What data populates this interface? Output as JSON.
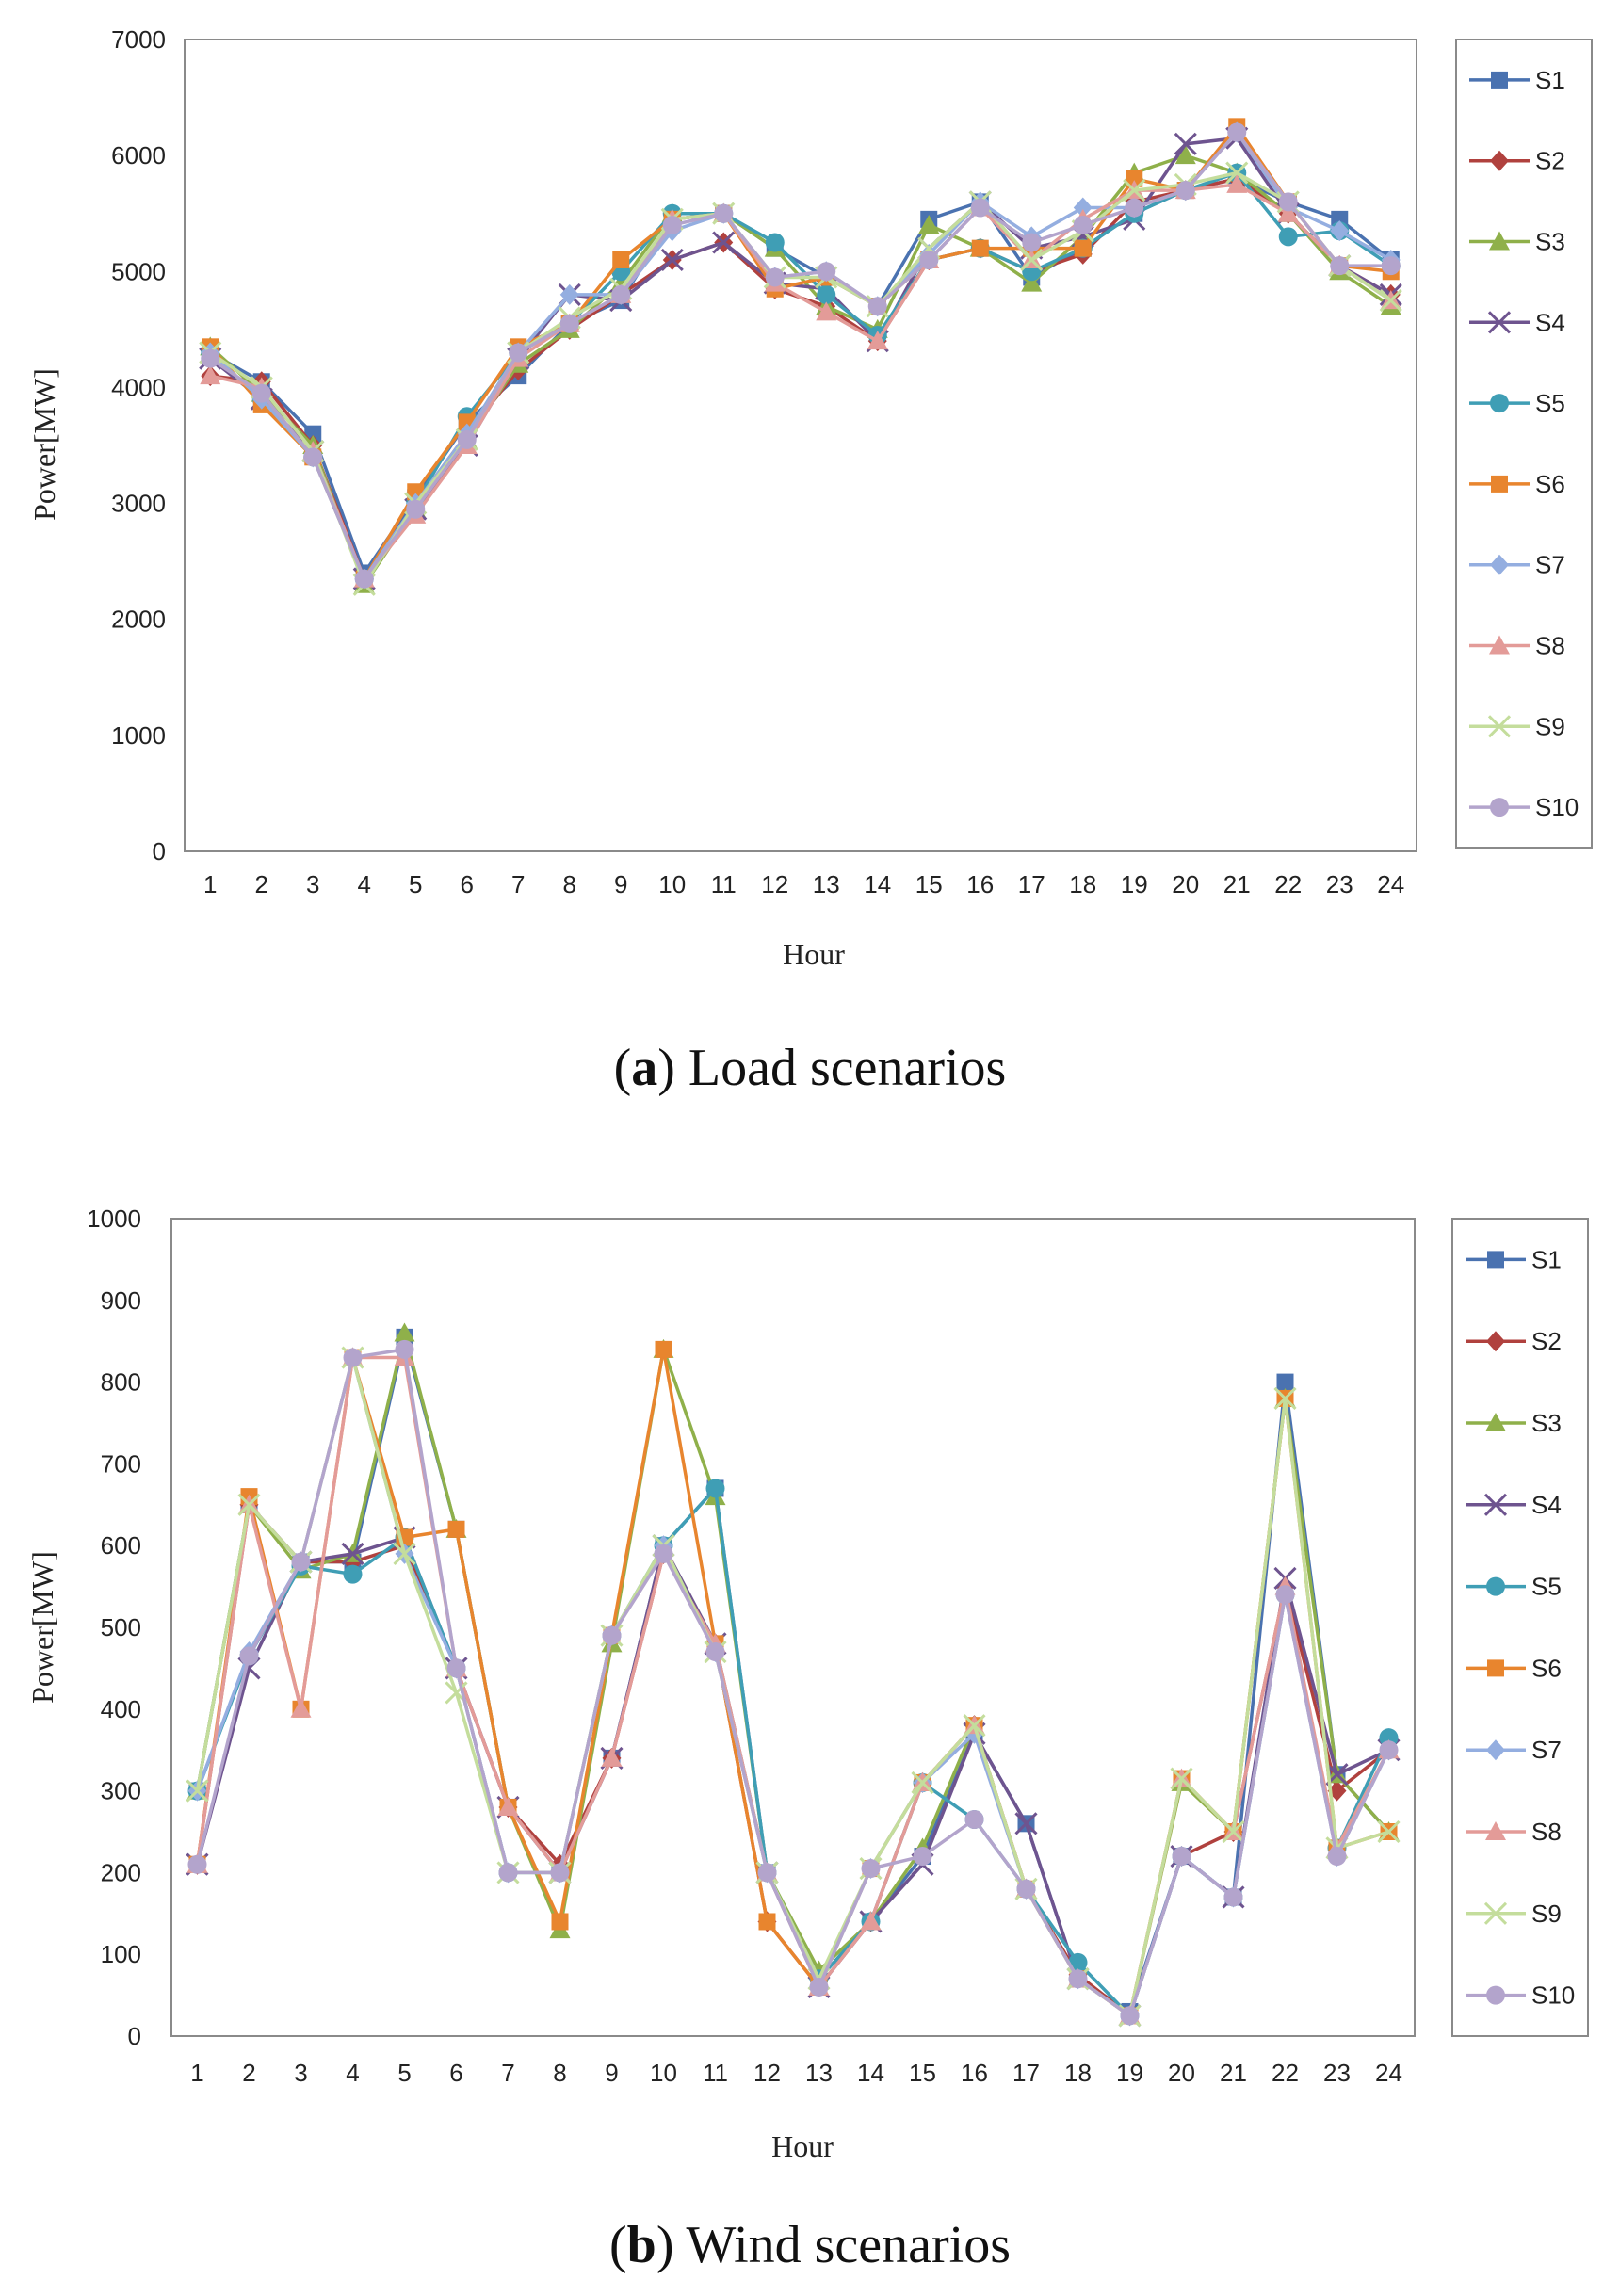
{
  "colors": {
    "S1": "#4a72b0",
    "S2": "#b0413e",
    "S3": "#8fb04a",
    "S4": "#6e548f",
    "S5": "#3f9eb5",
    "S6": "#e8852e",
    "S7": "#94aee0",
    "S8": "#e39b98",
    "S9": "#c4dd9c",
    "S10": "#b3a4cc"
  },
  "chart_data": [
    {
      "id": "load",
      "type": "line",
      "caption_letter": "a",
      "caption_text": ") Load scenarios",
      "xlabel": "Hour",
      "ylabel": "Power[MW]",
      "ylim": [
        0,
        7000
      ],
      "yticks": [
        "0",
        "1000",
        "2000",
        "3000",
        "4000",
        "5000",
        "6000",
        "7000"
      ],
      "xticks": [
        "1",
        "2",
        "3",
        "4",
        "5",
        "6",
        "7",
        "8",
        "9",
        "10",
        "11",
        "12",
        "13",
        "14",
        "15",
        "16",
        "17",
        "18",
        "19",
        "20",
        "21",
        "22",
        "23",
        "24"
      ],
      "legend": "right",
      "series": [
        {
          "name": "S1",
          "marker": "square",
          "values": [
            4300,
            4050,
            3600,
            2400,
            3050,
            3700,
            4100,
            4550,
            4750,
            5450,
            5500,
            5200,
            4950,
            4700,
            5450,
            5600,
            4950,
            5200,
            5500,
            5700,
            5800,
            5600,
            5450,
            5100
          ]
        },
        {
          "name": "S2",
          "marker": "diamond",
          "values": [
            4100,
            4050,
            3500,
            2350,
            3000,
            3600,
            4150,
            4500,
            4800,
            5100,
            5250,
            4850,
            4700,
            4400,
            5100,
            5200,
            5000,
            5150,
            5600,
            5700,
            5800,
            5500,
            5050,
            4800
          ]
        },
        {
          "name": "S3",
          "marker": "triangle",
          "values": [
            4350,
            3950,
            3500,
            2300,
            2950,
            3550,
            4200,
            4500,
            4900,
            5500,
            5500,
            5200,
            4700,
            4500,
            5400,
            5200,
            4900,
            5300,
            5850,
            6000,
            5850,
            5500,
            5000,
            4700
          ]
        },
        {
          "name": "S4",
          "marker": "x",
          "values": [
            4250,
            3900,
            3450,
            2350,
            2950,
            3500,
            4250,
            4800,
            4750,
            5100,
            5250,
            4900,
            4850,
            4400,
            5200,
            5600,
            5200,
            5300,
            5450,
            6100,
            6150,
            5500,
            5050,
            4800
          ]
        },
        {
          "name": "S5",
          "marker": "circle",
          "values": [
            4300,
            3900,
            3400,
            2350,
            3000,
            3750,
            4300,
            4550,
            5000,
            5500,
            5500,
            5250,
            4800,
            4450,
            5100,
            5200,
            5000,
            5200,
            5500,
            5700,
            5850,
            5300,
            5350,
            5050
          ]
        },
        {
          "name": "S6",
          "marker": "square",
          "values": [
            4350,
            3850,
            3400,
            2350,
            3100,
            3700,
            4350,
            4550,
            5100,
            5450,
            5500,
            4850,
            4950,
            4700,
            5100,
            5200,
            5200,
            5200,
            5800,
            5700,
            6250,
            5600,
            5050,
            5000
          ]
        },
        {
          "name": "S7",
          "marker": "diamond",
          "values": [
            4300,
            3900,
            3400,
            2350,
            3000,
            3600,
            4300,
            4800,
            4800,
            5350,
            5500,
            4950,
            5000,
            4700,
            5150,
            5600,
            5300,
            5550,
            5550,
            5700,
            6200,
            5550,
            5350,
            5100
          ]
        },
        {
          "name": "S8",
          "marker": "triangle",
          "values": [
            4100,
            4000,
            3450,
            2350,
            2900,
            3500,
            4250,
            4550,
            4800,
            5450,
            5500,
            4900,
            4650,
            4400,
            5100,
            5550,
            5100,
            5450,
            5700,
            5700,
            5750,
            5500,
            5050,
            4750
          ]
        },
        {
          "name": "S9",
          "marker": "x",
          "values": [
            4300,
            4000,
            3450,
            2300,
            3000,
            3550,
            4300,
            4600,
            4850,
            5450,
            5500,
            4950,
            4950,
            4700,
            5200,
            5600,
            5100,
            5350,
            5700,
            5750,
            5850,
            5600,
            5050,
            4750
          ]
        },
        {
          "name": "S10",
          "marker": "circle",
          "values": [
            4250,
            3950,
            3400,
            2350,
            2950,
            3550,
            4300,
            4550,
            4800,
            5400,
            5500,
            4950,
            5000,
            4700,
            5100,
            5550,
            5250,
            5400,
            5550,
            5700,
            6200,
            5600,
            5050,
            5050
          ]
        }
      ]
    },
    {
      "id": "wind",
      "type": "line",
      "caption_letter": "b",
      "caption_text": ") Wind scenarios",
      "xlabel": "Hour",
      "ylabel": "Power[MW]",
      "ylim": [
        0,
        1000
      ],
      "yticks": [
        "0",
        "100",
        "200",
        "300",
        "400",
        "500",
        "600",
        "700",
        "800",
        "900",
        "1000"
      ],
      "xticks": [
        "1",
        "2",
        "3",
        "4",
        "5",
        "6",
        "7",
        "8",
        "9",
        "10",
        "11",
        "12",
        "13",
        "14",
        "15",
        "16",
        "17",
        "18",
        "19",
        "20",
        "21",
        "22",
        "23",
        "24"
      ],
      "legend": "right",
      "series": [
        {
          "name": "S1",
          "marker": "square",
          "values": [
            300,
            650,
            580,
            580,
            855,
            620,
            280,
            200,
            340,
            600,
            670,
            200,
            70,
            140,
            220,
            370,
            260,
            70,
            30,
            220,
            170,
            800,
            320,
            250
          ]
        },
        {
          "name": "S2",
          "marker": "diamond",
          "values": [
            210,
            650,
            580,
            580,
            600,
            450,
            280,
            210,
            340,
            590,
            480,
            140,
            60,
            140,
            310,
            380,
            180,
            75,
            25,
            220,
            250,
            550,
            300,
            350
          ]
        },
        {
          "name": "S3",
          "marker": "triangle",
          "values": [
            300,
            650,
            570,
            590,
            860,
            620,
            280,
            130,
            480,
            840,
            660,
            200,
            80,
            140,
            230,
            380,
            180,
            70,
            25,
            310,
            250,
            780,
            320,
            250
          ]
        },
        {
          "name": "S4",
          "marker": "x",
          "values": [
            210,
            450,
            580,
            590,
            610,
            450,
            280,
            200,
            340,
            600,
            480,
            200,
            60,
            140,
            210,
            370,
            260,
            70,
            25,
            220,
            170,
            560,
            320,
            350
          ]
        },
        {
          "name": "S5",
          "marker": "circle",
          "values": [
            300,
            465,
            575,
            565,
            610,
            450,
            200,
            200,
            490,
            600,
            670,
            200,
            70,
            140,
            310,
            265,
            180,
            90,
            25,
            220,
            170,
            540,
            230,
            365
          ]
        },
        {
          "name": "S6",
          "marker": "square",
          "values": [
            210,
            660,
            400,
            830,
            610,
            620,
            280,
            140,
            490,
            840,
            480,
            140,
            60,
            205,
            310,
            380,
            180,
            70,
            25,
            315,
            250,
            780,
            230,
            250
          ]
        },
        {
          "name": "S7",
          "marker": "diamond",
          "values": [
            300,
            470,
            580,
            830,
            590,
            450,
            200,
            200,
            490,
            600,
            470,
            200,
            60,
            205,
            310,
            370,
            180,
            70,
            25,
            220,
            170,
            540,
            220,
            350
          ]
        },
        {
          "name": "S8",
          "marker": "triangle",
          "values": [
            210,
            650,
            400,
            830,
            830,
            450,
            280,
            200,
            340,
            590,
            480,
            200,
            60,
            140,
            310,
            380,
            180,
            70,
            25,
            315,
            250,
            550,
            230,
            350
          ]
        },
        {
          "name": "S9",
          "marker": "x",
          "values": [
            300,
            650,
            580,
            830,
            590,
            420,
            200,
            200,
            490,
            600,
            470,
            200,
            70,
            205,
            310,
            380,
            180,
            70,
            25,
            315,
            250,
            780,
            230,
            250
          ]
        },
        {
          "name": "S10",
          "marker": "circle",
          "values": [
            210,
            465,
            580,
            830,
            840,
            450,
            200,
            200,
            490,
            590,
            470,
            200,
            60,
            205,
            220,
            265,
            180,
            70,
            25,
            220,
            170,
            540,
            220,
            350
          ]
        }
      ]
    }
  ]
}
